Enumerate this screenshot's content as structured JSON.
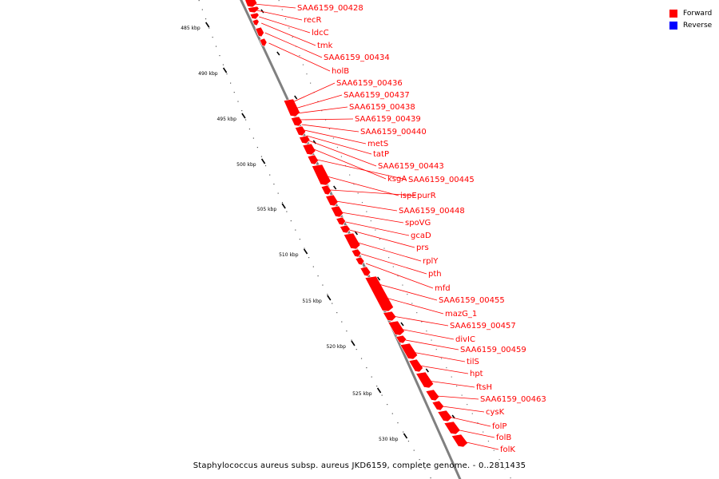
{
  "legend": {
    "forward_label": "Forward",
    "reverse_label": "Reverse",
    "forward_color": "#ff0000",
    "reverse_color": "#0000ff"
  },
  "caption": "Staphylococcus aureus subsp. aureus JKD6159, complete genome. - 0..2811435",
  "scale_ticks": [
    "485 kbp",
    "490 kbp",
    "495 kbp",
    "500 kbp",
    "505 kbp",
    "510 kbp",
    "515 kbp",
    "520 kbp",
    "525 kbp",
    "530 kbp"
  ],
  "genes": [
    {
      "name": "SAA6159_00428",
      "strand": "forward"
    },
    {
      "name": "recR",
      "strand": "forward"
    },
    {
      "name": "ldcC",
      "strand": "forward"
    },
    {
      "name": "tmk",
      "strand": "forward"
    },
    {
      "name": "SAA6159_00434",
      "strand": "forward"
    },
    {
      "name": "holB",
      "strand": "forward"
    },
    {
      "name": "SAA6159_00436",
      "strand": "forward"
    },
    {
      "name": "SAA6159_00437",
      "strand": "forward"
    },
    {
      "name": "SAA6159_00438",
      "strand": "forward"
    },
    {
      "name": "SAA6159_00439",
      "strand": "forward"
    },
    {
      "name": "SAA6159_00440",
      "strand": "forward"
    },
    {
      "name": "metS",
      "strand": "forward"
    },
    {
      "name": "tatP",
      "strand": "forward"
    },
    {
      "name": "SAA6159_00443",
      "strand": "forward"
    },
    {
      "name": "ksgA",
      "strand": "forward"
    },
    {
      "name": "SAA6159_00445",
      "strand": "forward"
    },
    {
      "name": "ispE",
      "strand": "forward"
    },
    {
      "name": "purR",
      "strand": "forward"
    },
    {
      "name": "SAA6159_00448",
      "strand": "forward"
    },
    {
      "name": "spoVG",
      "strand": "forward"
    },
    {
      "name": "gcaD",
      "strand": "forward"
    },
    {
      "name": "prs",
      "strand": "forward"
    },
    {
      "name": "rplY",
      "strand": "forward"
    },
    {
      "name": "pth",
      "strand": "forward"
    },
    {
      "name": "mfd",
      "strand": "forward"
    },
    {
      "name": "SAA6159_00455",
      "strand": "forward"
    },
    {
      "name": "mazG_1",
      "strand": "forward"
    },
    {
      "name": "SAA6159_00457",
      "strand": "forward"
    },
    {
      "name": "divIC",
      "strand": "forward"
    },
    {
      "name": "SAA6159_00459",
      "strand": "forward"
    },
    {
      "name": "tilS",
      "strand": "forward"
    },
    {
      "name": "hpt",
      "strand": "forward"
    },
    {
      "name": "ftsH",
      "strand": "forward"
    },
    {
      "name": "SAA6159_00463",
      "strand": "forward"
    },
    {
      "name": "cysK",
      "strand": "forward"
    },
    {
      "name": "folP",
      "strand": "forward"
    },
    {
      "name": "folB",
      "strand": "forward"
    },
    {
      "name": "folK",
      "strand": "forward"
    }
  ]
}
